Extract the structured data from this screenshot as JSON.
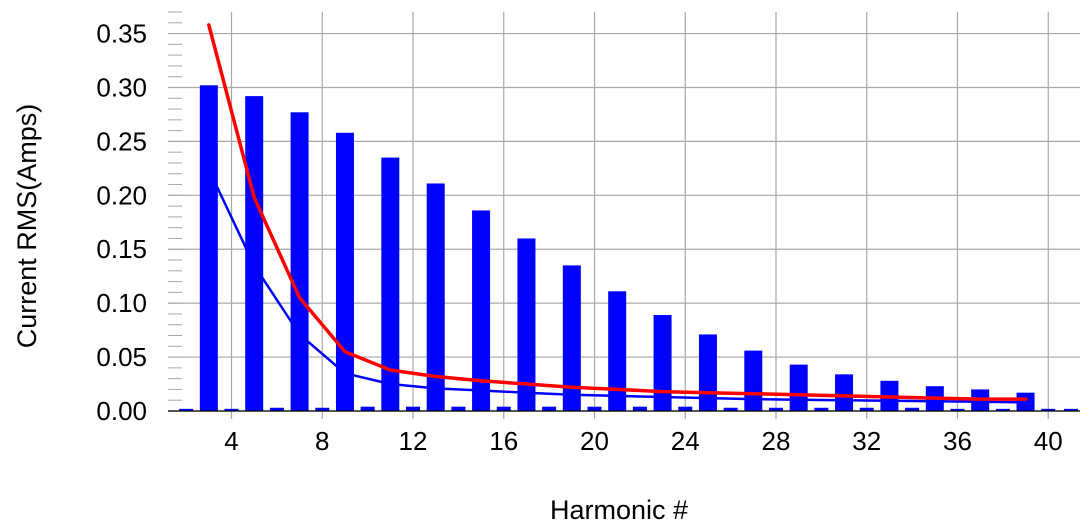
{
  "chart_data": {
    "type": "bar",
    "title": "",
    "xlabel": "Harmonic #",
    "ylabel": "Current RMS(Amps)",
    "xlim": [
      1.2,
      41.4
    ],
    "ylim": [
      0,
      0.37
    ],
    "grid": true,
    "legend": "none",
    "xticks": [
      4,
      8,
      12,
      16,
      20,
      24,
      28,
      32,
      36,
      40
    ],
    "xtick_labels": [
      "4",
      "8",
      "12",
      "16",
      "20",
      "24",
      "28",
      "32",
      "36",
      "40"
    ],
    "yticks": [
      0,
      0.05,
      0.1,
      0.15,
      0.2,
      0.25,
      0.3,
      0.35
    ],
    "ytick_labels": [
      "0.00",
      "0.05",
      "0.10",
      "0.15",
      "0.20",
      "0.25",
      "0.30",
      "0.35"
    ],
    "bar_series": [
      {
        "color": "#0000ff",
        "x": [
          3,
          5,
          7,
          9,
          11,
          13,
          15,
          17,
          19,
          21,
          23,
          25,
          27,
          29,
          31,
          33,
          35,
          37,
          39
        ],
        "values": [
          0.302,
          0.292,
          0.277,
          0.258,
          0.235,
          0.211,
          0.186,
          0.16,
          0.135,
          0.111,
          0.089,
          0.071,
          0.056,
          0.043,
          0.034,
          0.028,
          0.023,
          0.02,
          0.017
        ]
      },
      {
        "color": "#0000ff",
        "x": [
          2,
          3,
          4,
          5,
          6,
          7,
          8,
          9,
          10,
          11,
          12,
          13,
          14,
          15,
          16,
          17,
          18,
          19,
          20,
          21,
          22,
          23,
          24,
          25,
          26,
          27,
          28,
          29,
          30,
          31,
          32,
          33,
          34,
          35,
          36,
          37,
          38,
          39,
          40,
          41
        ],
        "values": [
          0.002,
          0.002,
          0.002,
          0.002,
          0.003,
          0.003,
          0.003,
          0.003,
          0.004,
          0.004,
          0.004,
          0.004,
          0.004,
          0.004,
          0.004,
          0.004,
          0.004,
          0.004,
          0.004,
          0.004,
          0.004,
          0.004,
          0.004,
          0.004,
          0.003,
          0.003,
          0.003,
          0.003,
          0.003,
          0.003,
          0.003,
          0.003,
          0.003,
          0.002,
          0.002,
          0.002,
          0.002,
          0.002,
          0.002,
          0.002
        ]
      }
    ],
    "line_series": [
      {
        "color": "#0000ff",
        "x": [
          3,
          5,
          7,
          9,
          11,
          13,
          15,
          17,
          19,
          21,
          23,
          25,
          27,
          29,
          31,
          33,
          35,
          37,
          39
        ],
        "values": [
          0.224,
          0.135,
          0.071,
          0.035,
          0.025,
          0.021,
          0.019,
          0.017,
          0.015,
          0.014,
          0.013,
          0.012,
          0.011,
          0.0105,
          0.01,
          0.0095,
          0.009,
          0.0085,
          0.008
        ]
      },
      {
        "color": "#ff0000",
        "x": [
          3,
          5,
          7,
          9,
          11,
          13,
          15,
          17,
          19,
          21,
          23,
          25,
          27,
          29,
          31,
          33,
          35,
          37,
          39
        ],
        "values": [
          0.358,
          0.198,
          0.105,
          0.055,
          0.038,
          0.032,
          0.028,
          0.025,
          0.022,
          0.02,
          0.018,
          0.017,
          0.016,
          0.015,
          0.014,
          0.013,
          0.012,
          0.011,
          0.011
        ]
      }
    ],
    "colors": {
      "grid": "#a8a8a8",
      "axis": "#000000",
      "background": "#ffffff"
    }
  }
}
